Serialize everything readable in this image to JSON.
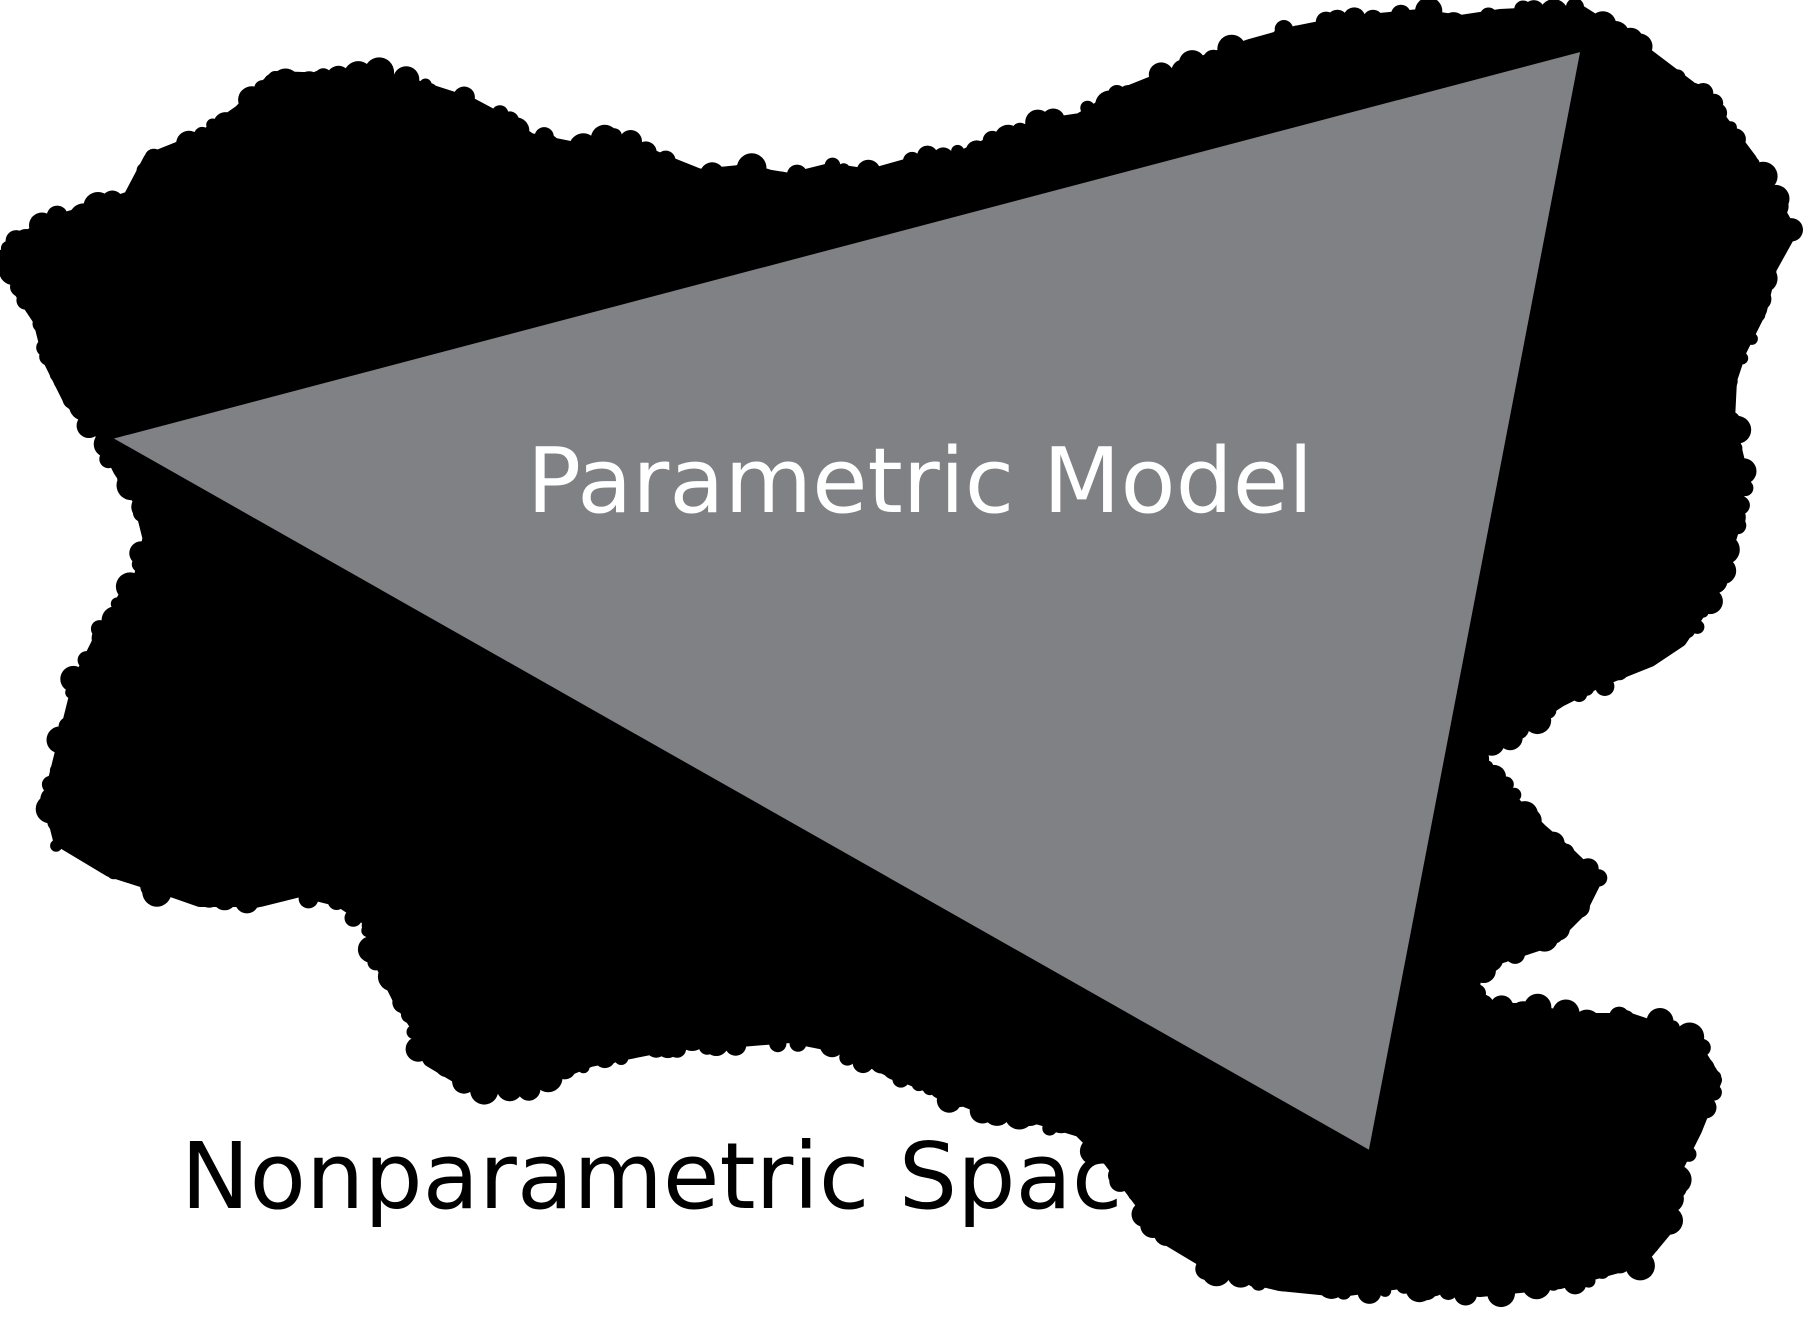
{
  "diagram": {
    "inner_label": "Parametric Model",
    "outer_label": "Nonparametric Space"
  },
  "colors": {
    "background": "#ffffff",
    "nonparametric_fill": "#000000",
    "parametric_fill": "#808184",
    "parametric_stroke": "#000000",
    "inner_label_color": "#ffffff",
    "outer_label_color": "#000000"
  }
}
